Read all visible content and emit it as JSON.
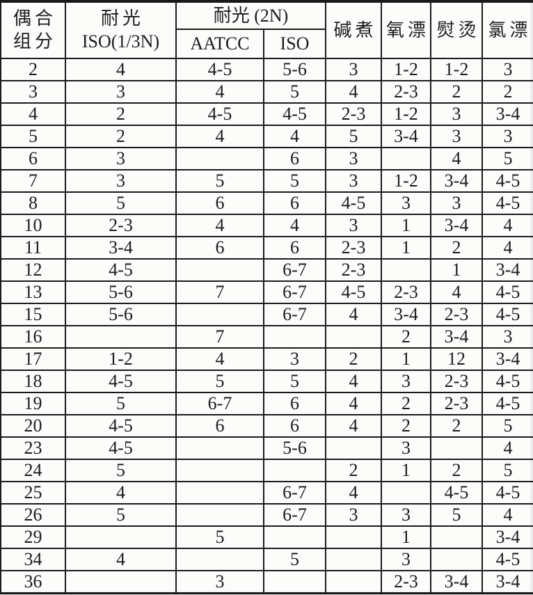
{
  "table": {
    "header": {
      "coupling_line1": "偶合",
      "coupling_line2": "组分",
      "lightfast_line1": "耐光",
      "lightfast_line2": "ISO(1/3N)",
      "lightfast_2n_label": "耐光 (2N)",
      "aatcc_label": "AATCC",
      "iso_label": "ISO",
      "alkali_boil_label": "碱煮",
      "oxygen_bleach_label": "氧漂",
      "ironing_label": "熨烫",
      "chlorine_bleach_label": "氯漂"
    },
    "rows": [
      {
        "component": "2",
        "values": [
          "4",
          "4-5",
          "5-6",
          "3",
          "1-2",
          "1-2",
          "3"
        ]
      },
      {
        "component": "3",
        "values": [
          "3",
          "4",
          "5",
          "4",
          "2-3",
          "2",
          "2"
        ]
      },
      {
        "component": "4",
        "values": [
          "2",
          "4-5",
          "4-5",
          "2-3",
          "1-2",
          "3",
          "3-4"
        ]
      },
      {
        "component": "5",
        "values": [
          "2",
          "4",
          "4",
          "5",
          "3-4",
          "3",
          "3"
        ]
      },
      {
        "component": "6",
        "values": [
          "3",
          "",
          "6",
          "3",
          "",
          "4",
          "5"
        ]
      },
      {
        "component": "7",
        "values": [
          "3",
          "5",
          "5",
          "3",
          "1-2",
          "3-4",
          "4-5"
        ]
      },
      {
        "component": "8",
        "values": [
          "5",
          "6",
          "6",
          "4-5",
          "3",
          "3",
          "4-5"
        ]
      },
      {
        "component": "10",
        "values": [
          "2-3",
          "4",
          "4",
          "3",
          "1",
          "3-4",
          "4"
        ]
      },
      {
        "component": "11",
        "values": [
          "3-4",
          "6",
          "6",
          "2-3",
          "1",
          "2",
          "4"
        ]
      },
      {
        "component": "12",
        "values": [
          "4-5",
          "",
          "6-7",
          "2-3",
          "",
          "1",
          "3-4"
        ]
      },
      {
        "component": "13",
        "values": [
          "5-6",
          "7",
          "6-7",
          "4-5",
          "2-3",
          "4",
          "4-5"
        ]
      },
      {
        "component": "15",
        "values": [
          "5-6",
          "",
          "6-7",
          "4",
          "3-4",
          "2-3",
          "4-5"
        ]
      },
      {
        "component": "16",
        "values": [
          "",
          "7",
          "",
          "",
          "2",
          "3-4",
          "3"
        ]
      },
      {
        "component": "17",
        "values": [
          "1-2",
          "4",
          "3",
          "2",
          "1",
          "12",
          "3-4"
        ]
      },
      {
        "component": "18",
        "values": [
          "4-5",
          "5",
          "5",
          "4",
          "3",
          "2-3",
          "4-5"
        ]
      },
      {
        "component": "19",
        "values": [
          "5",
          "6-7",
          "6",
          "4",
          "2",
          "2-3",
          "4-5"
        ]
      },
      {
        "component": "20",
        "values": [
          "4-5",
          "6",
          "6",
          "4",
          "2",
          "2",
          "5"
        ]
      },
      {
        "component": "23",
        "values": [
          "4-5",
          "",
          "5-6",
          "",
          "3",
          "",
          "4"
        ]
      },
      {
        "component": "24",
        "values": [
          "5",
          "",
          "",
          "2",
          "1",
          "2",
          "5"
        ]
      },
      {
        "component": "25",
        "values": [
          "4",
          "",
          "6-7",
          "4",
          "",
          "4-5",
          "4-5"
        ]
      },
      {
        "component": "26",
        "values": [
          "5",
          "",
          "6-7",
          "3",
          "3",
          "5",
          "4"
        ]
      },
      {
        "component": "29",
        "values": [
          "",
          "5",
          "",
          "",
          "1",
          "",
          "3-4"
        ]
      },
      {
        "component": "34",
        "values": [
          "4",
          "",
          "5",
          "",
          "3",
          "",
          "4-5"
        ]
      },
      {
        "component": "36",
        "values": [
          "",
          "3",
          "",
          "",
          "2-3",
          "3-4",
          "3-4"
        ]
      }
    ]
  }
}
